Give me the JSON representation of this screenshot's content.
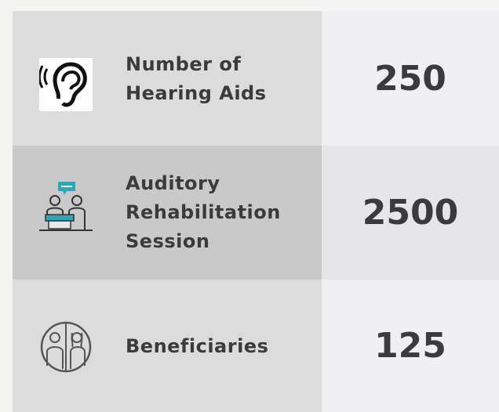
{
  "rows": [
    {
      "label_lines": [
        "Number of",
        "Hearing Aids"
      ],
      "value": 250
    },
    {
      "label_lines": [
        "Auditory",
        "Rehabilitation",
        "Session"
      ],
      "value": 2500
    },
    {
      "label_lines": [
        "Beneficiaries"
      ],
      "value": 125
    }
  ]
}
